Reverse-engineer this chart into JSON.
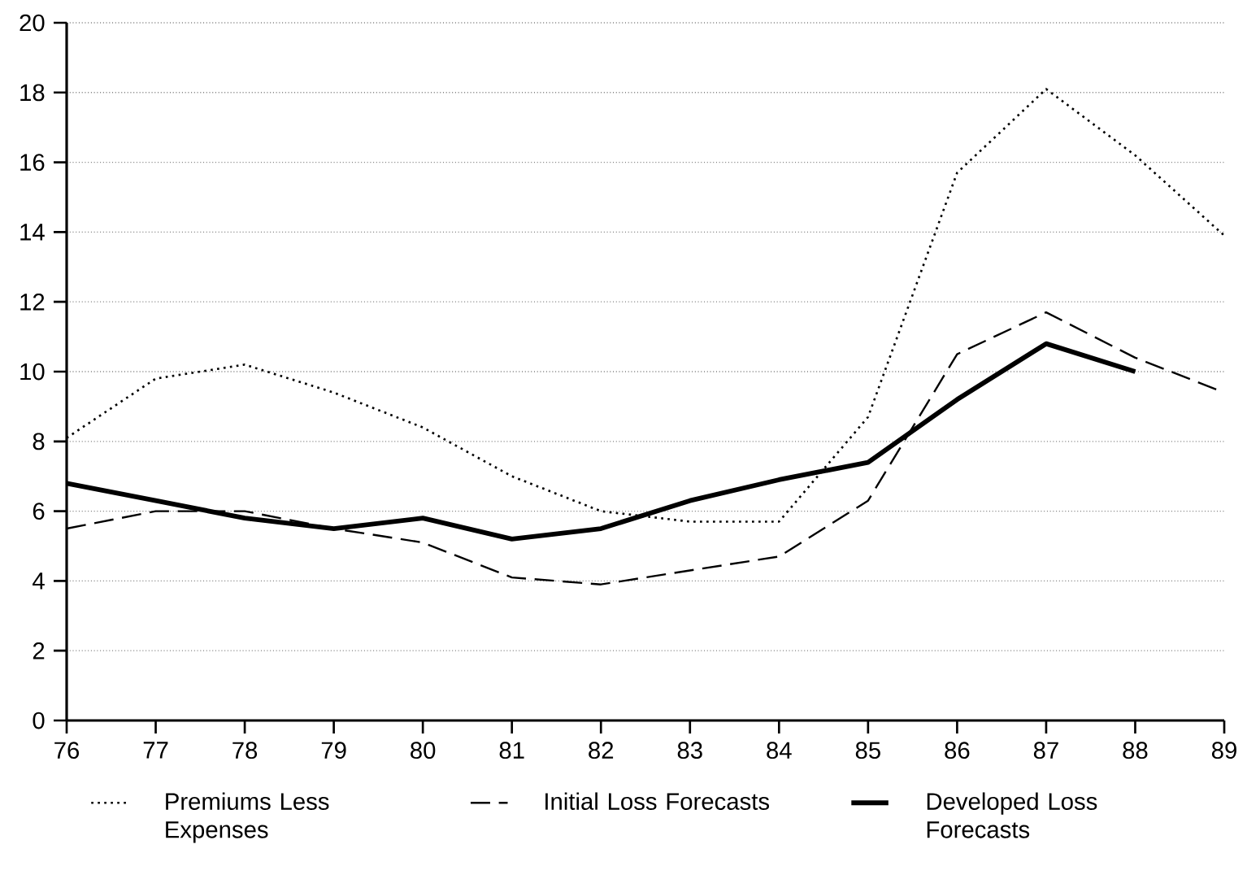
{
  "chart_data": {
    "type": "line",
    "categories": [
      "76",
      "77",
      "78",
      "79",
      "80",
      "81",
      "82",
      "83",
      "84",
      "85",
      "86",
      "87",
      "88",
      "89"
    ],
    "series": [
      {
        "name": "Premiums Less Expenses",
        "color": "#000000",
        "line_style": "dotted",
        "values": [
          8.1,
          9.8,
          10.2,
          9.4,
          8.4,
          7.0,
          6.0,
          5.7,
          5.7,
          8.7,
          15.7,
          18.1,
          16.2,
          13.9
        ]
      },
      {
        "name": "Initial Loss Forecasts",
        "color": "#000000",
        "line_style": "dashed",
        "values": [
          5.5,
          6.0,
          6.0,
          5.5,
          5.1,
          4.1,
          3.9,
          4.3,
          4.7,
          6.3,
          10.5,
          11.7,
          10.4,
          9.4
        ]
      },
      {
        "name": "Developed Loss Forecasts",
        "color": "#000000",
        "line_style": "solid",
        "values": [
          6.8,
          6.3,
          5.8,
          5.5,
          5.8,
          5.2,
          5.5,
          6.3,
          6.9,
          7.4,
          9.2,
          10.8,
          10.0,
          null
        ]
      }
    ],
    "ylim": [
      0,
      20
    ],
    "yticks": [
      0,
      2,
      4,
      6,
      8,
      10,
      12,
      14,
      16,
      18,
      20
    ],
    "grid": "y",
    "legend": "bottom",
    "marker": "none"
  }
}
